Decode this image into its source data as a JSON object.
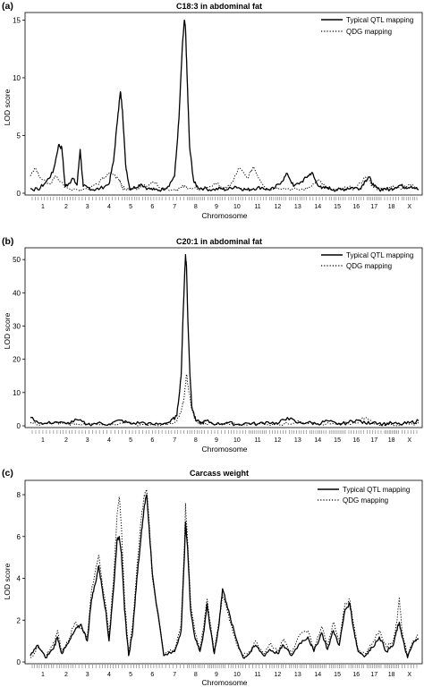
{
  "chart_data": [
    {
      "panel_label": "(a)",
      "type": "line",
      "title": "C18:3 in abdominal fat",
      "xlabel": "Chromosome",
      "ylabel": "LOD score",
      "ylim": [
        0,
        15.5
      ],
      "yticks": [
        0,
        5,
        10,
        15
      ],
      "legend_position": "top-right",
      "chromosomes": [
        "1",
        "2",
        "3",
        "4",
        "5",
        "6",
        "7",
        "8",
        "9",
        "10",
        "11",
        "12",
        "13",
        "14",
        "15",
        "16",
        "17",
        "18",
        "X"
      ],
      "series": [
        {
          "name": "Typical QTL mapping",
          "style": "solid",
          "x": [
            0,
            0.3,
            0.6,
            0.9,
            1.15,
            1.3,
            1.45,
            1.6,
            1.8,
            2.0,
            2.15,
            2.3,
            2.5,
            2.8,
            3.1,
            3.5,
            3.7,
            3.9,
            4.0,
            4.1,
            4.25,
            4.45,
            4.7,
            5.0,
            5.3,
            5.6,
            5.9,
            6.2,
            6.5,
            6.7,
            6.85,
            6.95,
            7.0,
            7.08,
            7.2,
            7.4,
            7.6,
            7.9,
            8.3,
            8.7,
            9.0,
            9.4,
            9.7,
            10.0,
            10.3,
            10.7,
            11.0,
            11.3,
            11.7,
            12.0,
            12.3,
            12.7,
            13.0,
            13.2,
            13.4,
            13.7,
            14.0,
            14.3,
            14.7,
            15.0,
            15.3,
            15.7,
            16.0,
            16.2,
            16.5,
            16.8,
            17.1,
            17.4,
            17.7,
            18.0,
            18.3,
            18.6,
            19.0
          ],
          "y": [
            0.4,
            0.3,
            0.9,
            1.8,
            4.2,
            3.9,
            0.6,
            0.8,
            1.3,
            0.7,
            3.8,
            0.6,
            0.5,
            0.3,
            0.4,
            0.8,
            2.8,
            7.0,
            8.8,
            7.2,
            2.5,
            0.4,
            0.5,
            0.8,
            0.4,
            0.3,
            0.3,
            0.6,
            1.5,
            6.5,
            12.5,
            15.0,
            14.2,
            10.0,
            4.0,
            1.0,
            0.5,
            0.4,
            0.3,
            0.4,
            0.3,
            0.6,
            0.4,
            0.3,
            0.4,
            0.5,
            0.3,
            0.4,
            1.0,
            1.7,
            0.6,
            1.0,
            1.5,
            1.8,
            1.0,
            0.4,
            0.5,
            0.3,
            0.3,
            0.4,
            0.5,
            0.4,
            1.1,
            1.4,
            0.6,
            0.3,
            0.4,
            0.3,
            0.5,
            0.7,
            0.5,
            0.6,
            0.3
          ]
        },
        {
          "name": "QDG mapping",
          "style": "dotted",
          "x": [
            0,
            0.2,
            0.4,
            0.8,
            1.0,
            1.5,
            2.0,
            2.5,
            3.0,
            3.3,
            3.6,
            3.9,
            4.0,
            4.1,
            4.3,
            4.6,
            5.0,
            5.5,
            6.0,
            6.5,
            6.8,
            7.0,
            7.2,
            7.6,
            8.0,
            8.5,
            9.0,
            9.3,
            9.6,
            10.0,
            10.3,
            10.6,
            11.0,
            11.5,
            12.0,
            12.5,
            13.0,
            13.5,
            14.0,
            14.5,
            15.0,
            15.5,
            16.0,
            16.5,
            17.0,
            17.5,
            18.0,
            18.5,
            19.0
          ],
          "y": [
            1.5,
            2.2,
            1.3,
            0.8,
            1.5,
            0.5,
            0.3,
            0.4,
            0.8,
            1.4,
            1.8,
            1.2,
            1.0,
            0.5,
            0.3,
            0.4,
            0.5,
            1.0,
            0.4,
            0.3,
            0.5,
            0.6,
            0.4,
            0.3,
            0.5,
            0.8,
            0.4,
            1.0,
            2.2,
            1.3,
            2.3,
            1.2,
            0.3,
            0.5,
            0.4,
            0.3,
            0.4,
            1.2,
            0.4,
            0.3,
            0.5,
            0.4,
            1.4,
            0.5,
            0.3,
            0.6,
            0.4,
            0.8,
            0.3
          ]
        }
      ]
    },
    {
      "panel_label": "(b)",
      "type": "line",
      "title": "C20:1 in abdominal fat",
      "xlabel": "Chromosome",
      "ylabel": "LOD score",
      "ylim": [
        0,
        53
      ],
      "yticks": [
        0,
        10,
        20,
        30,
        40,
        50
      ],
      "legend_position": "top-right",
      "chromosomes": [
        "1",
        "2",
        "3",
        "4",
        "5",
        "6",
        "7",
        "8",
        "9",
        "10",
        "11",
        "12",
        "13",
        "14",
        "15",
        "16",
        "17",
        "18",
        "X"
      ],
      "series": [
        {
          "name": "Typical QTL mapping",
          "style": "solid",
          "x": [
            0,
            0.5,
            1.0,
            1.5,
            2.0,
            2.5,
            3.0,
            3.5,
            4.0,
            4.5,
            5.0,
            5.5,
            6.0,
            6.3,
            6.6,
            6.8,
            6.9,
            7.0,
            7.05,
            7.1,
            7.2,
            7.3,
            7.5,
            7.8,
            8.0,
            8.5,
            9.0,
            9.5,
            10.0,
            10.5,
            11.0,
            11.5,
            12.0,
            12.5,
            13.0,
            13.5,
            14.0,
            14.5,
            15.0,
            15.5,
            16.0,
            16.5,
            17.0,
            17.5,
            18.0,
            18.5,
            19.0
          ],
          "y": [
            2.5,
            0.5,
            1.2,
            0.6,
            1.8,
            0.4,
            0.8,
            0.5,
            1.7,
            0.6,
            1.0,
            0.4,
            0.7,
            1.2,
            3.0,
            15.0,
            35.0,
            51.5,
            48.0,
            35.0,
            18.0,
            6.0,
            1.5,
            0.8,
            1.5,
            0.5,
            1.0,
            0.4,
            0.8,
            0.5,
            1.2,
            0.6,
            2.5,
            0.8,
            1.0,
            0.6,
            1.5,
            0.4,
            0.9,
            1.8,
            0.7,
            1.2,
            0.5,
            0.8,
            0.4,
            0.9,
            1.5
          ]
        },
        {
          "name": "QDG mapping",
          "style": "dotted",
          "x": [
            0,
            0.5,
            1.0,
            1.5,
            2.0,
            3.0,
            4.0,
            5.0,
            6.0,
            6.5,
            6.8,
            6.95,
            7.05,
            7.15,
            7.3,
            7.5,
            7.8,
            8.5,
            9.5,
            10.5,
            11.5,
            12.0,
            12.5,
            13.5,
            14.5,
            15.5,
            16.0,
            16.5,
            17.5,
            18.5,
            19.0
          ],
          "y": [
            1.0,
            0.5,
            0.8,
            0.4,
            0.6,
            0.3,
            0.8,
            0.4,
            0.5,
            1.0,
            4.0,
            9.0,
            15.5,
            11.0,
            5.0,
            1.5,
            0.6,
            0.4,
            0.3,
            0.5,
            0.4,
            0.6,
            1.5,
            0.5,
            0.4,
            0.8,
            2.5,
            0.6,
            0.4,
            0.5,
            0.8
          ]
        }
      ]
    },
    {
      "panel_label": "(c)",
      "type": "line",
      "title": "Carcass weight",
      "xlabel": "Chromosome",
      "ylabel": "LOD score",
      "ylim": [
        0,
        8.6
      ],
      "yticks": [
        0,
        2,
        4,
        6,
        8
      ],
      "legend_position": "top-right",
      "chromosomes": [
        "1",
        "2",
        "3",
        "4",
        "5",
        "6",
        "7",
        "8",
        "9",
        "10",
        "11",
        "12",
        "13",
        "14",
        "15",
        "16",
        "17",
        "18",
        "X"
      ],
      "series": [
        {
          "name": "Typical QTL mapping",
          "style": "solid",
          "x": [
            0,
            0.3,
            0.6,
            0.9,
            1.1,
            1.3,
            1.6,
            1.9,
            2.2,
            2.5,
            2.7,
            2.9,
            3.05,
            3.2,
            3.35,
            3.5,
            3.7,
            3.85,
            3.95,
            4.05,
            4.2,
            4.4,
            4.6,
            4.8,
            5.0,
            5.15,
            5.25,
            5.35,
            5.5,
            6.0,
            6.5,
            6.8,
            6.95,
            7.0,
            7.1,
            7.25,
            7.45,
            7.7,
            7.9,
            8.05,
            8.2,
            8.4,
            8.6,
            8.8,
            9.0,
            9.2,
            9.5,
            9.8,
            10.1,
            10.4,
            10.8,
            11.1,
            11.5,
            11.8,
            12.2,
            12.6,
            13.0,
            13.3,
            13.7,
            14.0,
            14.3,
            14.6,
            14.9,
            15.15,
            15.35,
            15.6,
            16.0,
            16.4,
            16.8,
            17.2,
            17.6,
            17.8,
            17.95,
            18.1,
            18.4,
            18.7,
            19.0
          ],
          "y": [
            0.3,
            0.8,
            0.2,
            0.6,
            1.2,
            0.4,
            0.9,
            1.5,
            1.8,
            1.0,
            3.0,
            3.8,
            4.6,
            3.5,
            2.5,
            1.0,
            3.5,
            5.8,
            6.0,
            5.2,
            2.5,
            0.3,
            1.5,
            4.0,
            6.0,
            7.5,
            8.0,
            6.5,
            4.2,
            0.3,
            0.5,
            1.5,
            5.0,
            6.7,
            5.5,
            2.5,
            1.2,
            0.5,
            1.5,
            2.8,
            1.6,
            0.4,
            1.6,
            3.5,
            2.8,
            2.0,
            1.0,
            0.2,
            0.4,
            0.8,
            0.3,
            0.6,
            0.4,
            0.8,
            0.3,
            0.9,
            1.2,
            0.5,
            1.4,
            0.6,
            1.5,
            0.8,
            2.5,
            2.8,
            1.6,
            0.5,
            0.3,
            0.7,
            1.2,
            0.5,
            0.8,
            1.5,
            1.9,
            1.2,
            0.2,
            0.9,
            1.1
          ]
        },
        {
          "name": "QDG mapping",
          "style": "dotted",
          "x": [
            0,
            0.3,
            0.6,
            0.9,
            1.1,
            1.3,
            1.6,
            1.9,
            2.2,
            2.5,
            2.7,
            2.9,
            3.05,
            3.2,
            3.35,
            3.5,
            3.7,
            3.85,
            3.95,
            4.05,
            4.2,
            4.4,
            4.6,
            4.8,
            5.0,
            5.15,
            5.25,
            5.35,
            5.5,
            6.0,
            6.5,
            6.8,
            6.95,
            7.0,
            7.1,
            7.25,
            7.45,
            7.7,
            7.9,
            8.05,
            8.2,
            8.4,
            8.6,
            8.8,
            9.0,
            9.2,
            9.5,
            9.8,
            10.1,
            10.4,
            10.8,
            11.1,
            11.5,
            11.8,
            12.2,
            12.6,
            13.0,
            13.3,
            13.7,
            14.0,
            14.3,
            14.6,
            14.9,
            15.15,
            15.35,
            15.6,
            16.0,
            16.4,
            16.8,
            17.2,
            17.6,
            17.8,
            17.95,
            18.1,
            18.4,
            18.7,
            19.0
          ],
          "y": [
            0.2,
            0.7,
            0.3,
            0.8,
            1.5,
            0.5,
            1.0,
            1.9,
            1.6,
            1.2,
            3.4,
            4.4,
            5.1,
            3.8,
            2.8,
            1.2,
            4.0,
            7.0,
            7.9,
            6.4,
            3.0,
            0.4,
            1.8,
            4.5,
            6.8,
            8.0,
            8.2,
            6.8,
            4.0,
            0.4,
            0.6,
            1.8,
            5.5,
            7.6,
            5.8,
            2.8,
            1.5,
            0.6,
            1.8,
            3.0,
            1.9,
            0.5,
            1.8,
            3.2,
            2.6,
            1.8,
            0.8,
            0.3,
            0.5,
            1.0,
            0.4,
            0.9,
            0.5,
            1.1,
            0.4,
            1.3,
            1.5,
            0.6,
            1.7,
            0.8,
            1.9,
            1.0,
            2.8,
            3.0,
            1.8,
            0.6,
            0.4,
            0.9,
            1.5,
            0.7,
            1.0,
            1.9,
            3.1,
            1.5,
            0.3,
            1.0,
            1.3
          ]
        }
      ]
    }
  ]
}
